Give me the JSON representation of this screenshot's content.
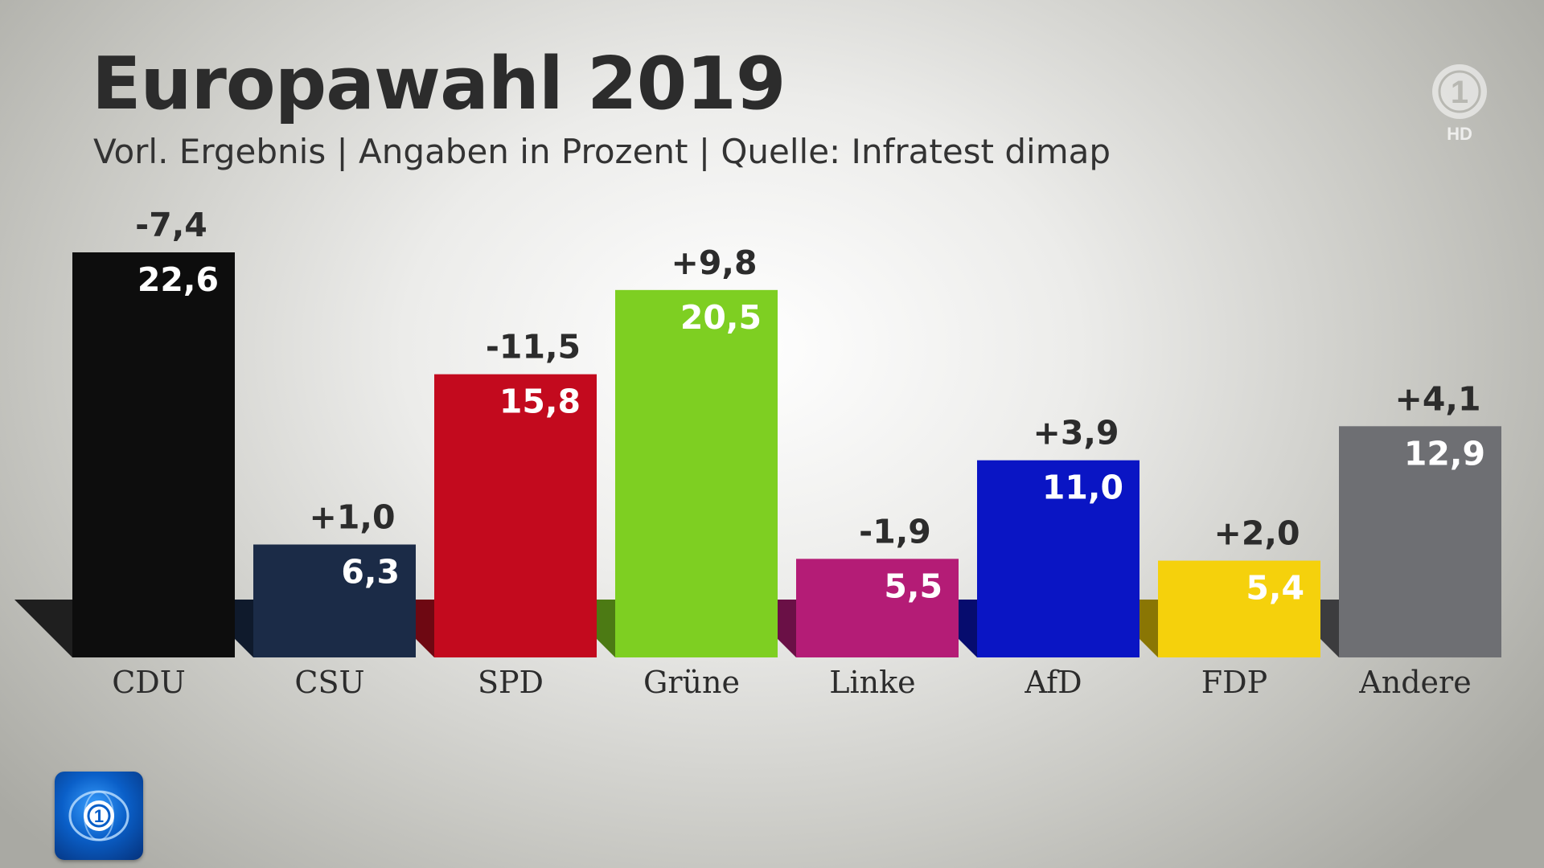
{
  "header": {
    "title": "Europawahl 2019",
    "subtitle": "Vorl. Ergebnis | Angaben in Prozent | Quelle: Infratest dimap"
  },
  "logos": {
    "channel": "1",
    "channel_suffix": "HD",
    "channel_icon": "das-erste-logo-icon",
    "news_icon": "tagesschau-logo-icon"
  },
  "chart_data": {
    "type": "bar",
    "title": "Europawahl 2019",
    "subtitle": "Vorl. Ergebnis | Angaben in Prozent | Quelle: Infratest dimap",
    "xlabel": "",
    "ylabel": "",
    "ylim": [
      0,
      22.6
    ],
    "grid": false,
    "legend": "none",
    "categories": [
      "CDU",
      "CSU",
      "SPD",
      "Grüne",
      "Linke",
      "AfD",
      "FDP",
      "Andere"
    ],
    "values": [
      22.6,
      6.3,
      15.8,
      20.5,
      5.5,
      11.0,
      5.4,
      12.9
    ],
    "value_labels": [
      "22,6",
      "6,3",
      "15,8",
      "20,5",
      "5,5",
      "11,0",
      "5,4",
      "12,9"
    ],
    "changes": [
      -7.4,
      1.0,
      -11.5,
      9.8,
      -1.9,
      3.9,
      2.0,
      4.1
    ],
    "change_labels": [
      "-7,4",
      "+1,0",
      "-11,5",
      "+9,8",
      "-1,9",
      "+3,9",
      "+2,0",
      "+4,1"
    ],
    "colors": [
      "#0d0d0d",
      "#1b2b47",
      "#c30a1e",
      "#7ecf22",
      "#b41c76",
      "#0a15c4",
      "#f5d10c",
      "#6e6f73"
    ],
    "shadow_colors": [
      "#1f1f1f",
      "#0f1a2c",
      "#6e0812",
      "#4c7a14",
      "#6a1046",
      "#060c6e",
      "#8a7604",
      "#3c3c3e"
    ],
    "label_colors": [
      "#ffffff",
      "#ffffff",
      "#ffffff",
      "#ffffff",
      "#ffffff",
      "#ffffff",
      "#ffffff",
      "#ffffff"
    ]
  }
}
